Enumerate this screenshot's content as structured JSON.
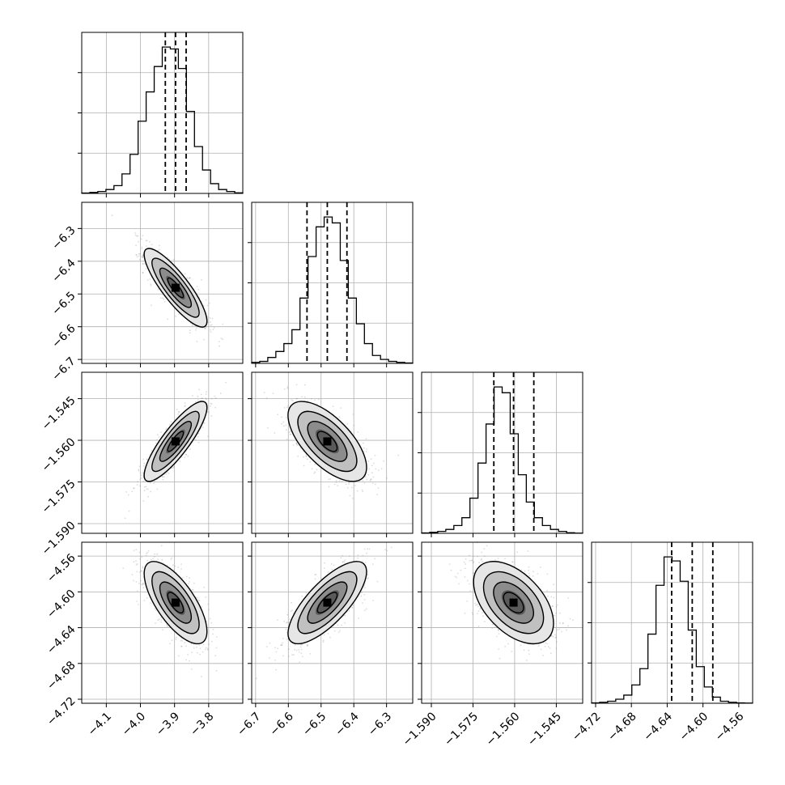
{
  "chart_data": {
    "type": "corner",
    "title": "",
    "parameters": [
      {
        "ticks": [
          -4.1,
          -4.0,
          -3.9,
          -3.8
        ],
        "tick_labels": [
          "−4.1",
          "−4.0",
          "−3.9",
          "−3.8"
        ],
        "range": [
          -4.172,
          -3.7
        ],
        "quantiles": [
          -3.927,
          -3.897,
          -3.866
        ],
        "hist": [
          0.2,
          0.5,
          1,
          2,
          4,
          10,
          20,
          37,
          52,
          65,
          75,
          74,
          64,
          42,
          24,
          12,
          5,
          2,
          1,
          0.3
        ]
      },
      {
        "ticks": [
          -6.7,
          -6.6,
          -6.5,
          -6.4,
          -6.3
        ],
        "tick_labels": [
          "−6.7",
          "−6.6",
          "−6.5",
          "−6.4",
          "−6.3"
        ],
        "range": [
          -6.712,
          -6.22
        ],
        "quantiles": [
          -6.543,
          -6.481,
          -6.421
        ],
        "hist": [
          0.5,
          1,
          3,
          6,
          10,
          17,
          33,
          54,
          69,
          74,
          71,
          52,
          33,
          20,
          10,
          4,
          2,
          1,
          0.5,
          0.2
        ]
      },
      {
        "ticks": [
          -1.59,
          -1.575,
          -1.56,
          -1.545
        ],
        "tick_labels": [
          "−1.590",
          "−1.575",
          "−1.560",
          "−1.545"
        ],
        "range": [
          -1.5935,
          -1.5355
        ],
        "quantiles": [
          -1.5675,
          -1.5604,
          -1.5531
        ],
        "hist": [
          0.2,
          0.5,
          1,
          2,
          4,
          8,
          18,
          36,
          56,
          75,
          72,
          51,
          30,
          16,
          8,
          4,
          2,
          1,
          0.3,
          0.1
        ]
      },
      {
        "ticks": [
          -4.72,
          -4.68,
          -4.64,
          -4.6,
          -4.56
        ],
        "tick_labels": [
          "−4.72",
          "−4.68",
          "−4.64",
          "−4.60",
          "−4.56"
        ],
        "range": [
          -4.7245,
          -4.5445
        ],
        "quantiles": [
          -4.635,
          -4.612,
          -4.589
        ],
        "hist": [
          0.2,
          0.5,
          1,
          2,
          4,
          9,
          17,
          34,
          58,
          72,
          70,
          60,
          36,
          18,
          8,
          3,
          1,
          0.5,
          0.2,
          0.1
        ]
      }
    ],
    "pairs": [
      {
        "row": 1,
        "col": 0,
        "center": [
          -3.897,
          -6.481
        ],
        "sd": [
          0.046,
          0.06
        ],
        "corr": -0.85
      },
      {
        "row": 2,
        "col": 0,
        "center": [
          -3.897,
          -1.5604
        ],
        "sd": [
          0.046,
          0.0072
        ],
        "corr": 0.85
      },
      {
        "row": 2,
        "col": 1,
        "center": [
          -6.481,
          -1.5604
        ],
        "sd": [
          0.06,
          0.0072
        ],
        "corr": -0.65
      },
      {
        "row": 3,
        "col": 0,
        "center": [
          -3.897,
          -4.612
        ],
        "sd": [
          0.046,
          0.023
        ],
        "corr": -0.7
      },
      {
        "row": 3,
        "col": 1,
        "center": [
          -6.481,
          -4.612
        ],
        "sd": [
          0.06,
          0.023
        ],
        "corr": 0.75
      },
      {
        "row": 3,
        "col": 2,
        "center": [
          -1.5604,
          -4.612
        ],
        "sd": [
          0.0072,
          0.023
        ],
        "corr": -0.5
      }
    ],
    "contour_levels": [
      0.5,
      1.0,
      1.5,
      2.0
    ],
    "grid": true,
    "colors": {
      "line": "#000000",
      "grid": "#b0b0b0",
      "density": "#000000",
      "scatter": "#808080"
    }
  }
}
